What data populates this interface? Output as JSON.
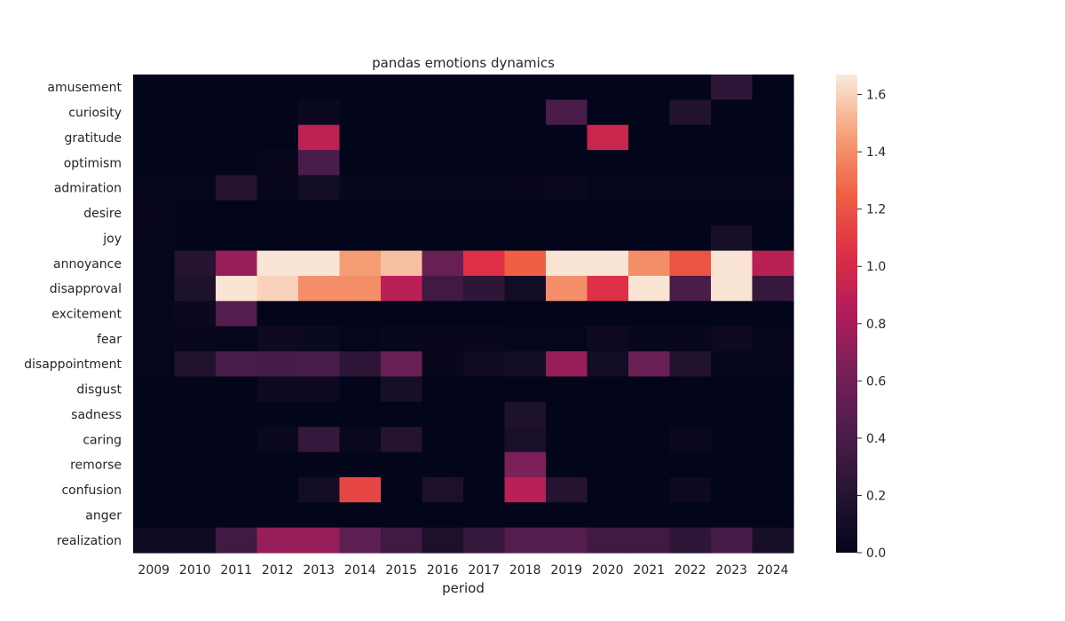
{
  "chart_data": {
    "type": "heatmap",
    "title": "pandas emotions dynamics",
    "xlabel": "period",
    "ylabel": "",
    "x": [
      "2009",
      "2010",
      "2011",
      "2012",
      "2013",
      "2014",
      "2015",
      "2016",
      "2017",
      "2018",
      "2019",
      "2020",
      "2021",
      "2022",
      "2023",
      "2024"
    ],
    "y": [
      "amusement",
      "curiosity",
      "gratitude",
      "optimism",
      "admiration",
      "desire",
      "joy",
      "annoyance",
      "disapproval",
      "excitement",
      "fear",
      "disappointment",
      "disgust",
      "sadness",
      "caring",
      "remorse",
      "confusion",
      "anger",
      "realization"
    ],
    "values": [
      [
        0,
        0,
        0,
        0,
        0,
        0,
        0,
        0,
        0,
        0,
        0,
        0,
        0,
        0,
        0.25,
        0
      ],
      [
        0,
        0,
        0,
        0,
        0.05,
        0,
        0,
        0,
        0,
        0,
        0.4,
        0,
        0,
        0.18,
        0,
        0
      ],
      [
        0,
        0,
        0,
        0,
        0.9,
        0,
        0,
        0,
        0,
        0,
        0,
        0.95,
        0,
        0,
        0,
        0
      ],
      [
        0,
        0,
        0,
        0.03,
        0.4,
        0,
        0,
        0,
        0,
        0,
        0,
        0,
        0,
        0,
        0,
        0
      ],
      [
        0.02,
        0.02,
        0.2,
        0.02,
        0.1,
        0.02,
        0.01,
        0.01,
        0.01,
        0.03,
        0.05,
        0.01,
        0.01,
        0.01,
        0.01,
        0.01
      ],
      [
        0.03,
        0,
        0,
        0,
        0,
        0,
        0,
        0,
        0,
        0,
        0,
        0,
        0,
        0,
        0,
        0
      ],
      [
        0.02,
        0,
        0,
        0,
        0,
        0,
        0,
        0,
        0,
        0,
        0,
        0,
        0,
        0,
        0.12,
        0
      ],
      [
        0.01,
        0.2,
        0.75,
        1.65,
        1.65,
        1.45,
        1.55,
        0.55,
        1.05,
        1.25,
        1.65,
        1.65,
        1.4,
        1.2,
        1.65,
        0.88
      ],
      [
        0.01,
        0.15,
        1.65,
        1.6,
        1.4,
        1.4,
        0.88,
        0.35,
        0.25,
        0.1,
        1.4,
        1.05,
        1.65,
        0.4,
        1.65,
        0.3
      ],
      [
        0.02,
        0.05,
        0.45,
        0,
        0,
        0,
        0,
        0,
        0,
        0,
        0,
        0,
        0,
        0,
        0,
        0
      ],
      [
        0.01,
        0.03,
        0.01,
        0.07,
        0.05,
        0.01,
        0.03,
        0.03,
        0.03,
        0.01,
        0.01,
        0.07,
        0.03,
        0.03,
        0.07,
        0.01
      ],
      [
        0.01,
        0.18,
        0.4,
        0.38,
        0.4,
        0.25,
        0.55,
        0.03,
        0.08,
        0.1,
        0.75,
        0.1,
        0.55,
        0.18,
        0.01,
        0.01
      ],
      [
        0,
        0,
        0,
        0.06,
        0.06,
        0,
        0.12,
        0,
        0,
        0,
        0,
        0,
        0,
        0,
        0,
        0
      ],
      [
        0,
        0,
        0,
        0,
        0,
        0,
        0,
        0,
        0,
        0.16,
        0,
        0,
        0,
        0,
        0,
        0
      ],
      [
        0,
        0,
        0,
        0.05,
        0.3,
        0.04,
        0.2,
        0,
        0,
        0.14,
        0,
        0,
        0,
        0.04,
        0,
        0
      ],
      [
        0,
        0,
        0,
        0,
        0,
        0,
        0,
        0,
        0,
        0.65,
        0,
        0,
        0,
        0,
        0,
        0
      ],
      [
        0,
        0,
        0,
        0,
        0.1,
        1.15,
        0,
        0.15,
        0,
        0.88,
        0.2,
        0,
        0,
        0.06,
        0,
        0
      ],
      [
        0,
        0,
        0,
        0,
        0,
        0,
        0,
        0,
        0,
        0,
        0,
        0,
        0,
        0,
        0,
        0
      ],
      [
        0.08,
        0.08,
        0.35,
        0.75,
        0.75,
        0.5,
        0.35,
        0.15,
        0.3,
        0.45,
        0.45,
        0.35,
        0.35,
        0.25,
        0.38,
        0.12
      ]
    ],
    "vmin": 0,
    "vmax": 1.67,
    "colormap": "rocket",
    "colorbar_ticks": [
      "0.0",
      "0.2",
      "0.4",
      "0.6",
      "0.8",
      "1.0",
      "1.2",
      "1.4",
      "1.6"
    ],
    "colorbar_tick_values": [
      0,
      0.2,
      0.4,
      0.6,
      0.8,
      1.0,
      1.2,
      1.4,
      1.6
    ]
  }
}
